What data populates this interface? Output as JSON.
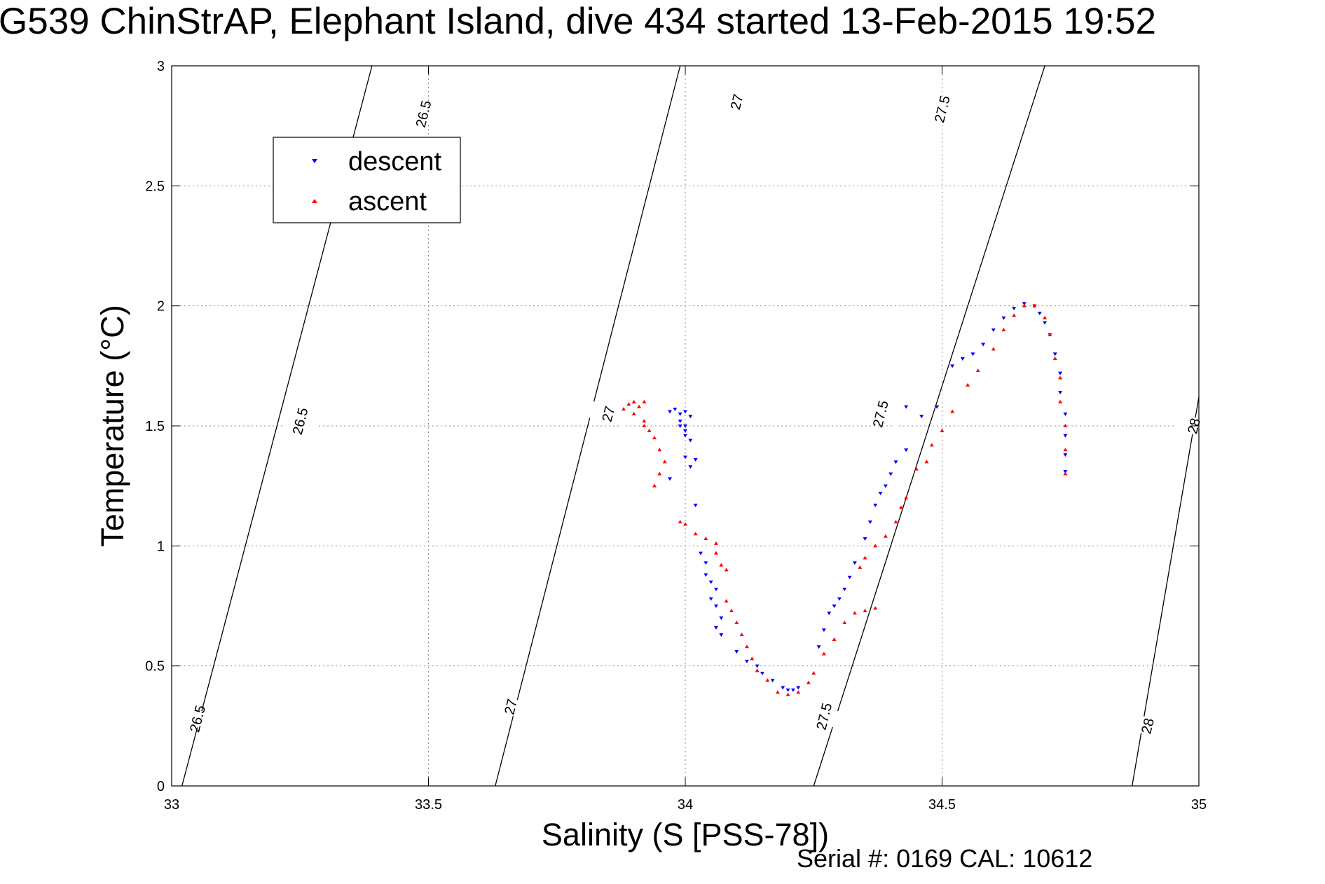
{
  "chart_data": {
    "type": "scatter",
    "title": "G539 ChinStrAP, Elephant Island, dive 434 started 13-Feb-2015 19:52",
    "xlabel": "Salinity (S [PSS-78])",
    "ylabel": "Temperature (°C)",
    "footer": "Serial #: 0169 CAL: 10612",
    "xlim": [
      33,
      35
    ],
    "ylim": [
      0,
      3
    ],
    "xticks": [
      33,
      33.5,
      34,
      34.5,
      35
    ],
    "xtick_labels": [
      "33",
      "33.5",
      "34",
      "34.5",
      "35"
    ],
    "yticks": [
      0,
      0.5,
      1,
      1.5,
      2,
      2.5,
      3
    ],
    "ytick_labels": [
      "0",
      "0.5",
      "1",
      "1.5",
      "2",
      "2.5",
      "3"
    ],
    "grid": true,
    "legend_position": "top-left",
    "colors": {
      "descent": "#0000ff",
      "ascent": "#ff0000",
      "contour": "#000000"
    },
    "density_contours": [
      {
        "label": "26.5",
        "points": [
          [
            33.02,
            0
          ],
          [
            33.39,
            3
          ]
        ]
      },
      {
        "label": "27",
        "points": [
          [
            33.63,
            0
          ],
          [
            33.99,
            3
          ]
        ]
      },
      {
        "label": "27.5",
        "points": [
          [
            34.25,
            0
          ],
          [
            34.7,
            3
          ]
        ]
      },
      {
        "label": "28",
        "points": [
          [
            34.87,
            0
          ],
          [
            35,
            1.62
          ]
        ]
      }
    ],
    "contour_labels": [
      {
        "label": "26.5",
        "x": 33.05,
        "y": 0.28
      },
      {
        "label": "26.5",
        "x": 33.25,
        "y": 1.52
      },
      {
        "label": "26.5",
        "x": 33.49,
        "y": 2.8
      },
      {
        "label": "27",
        "x": 33.66,
        "y": 0.33
      },
      {
        "label": "27",
        "x": 33.85,
        "y": 1.55
      },
      {
        "label": "27",
        "x": 34.1,
        "y": 2.85
      },
      {
        "label": "27.5",
        "x": 34.27,
        "y": 0.29
      },
      {
        "label": "27.5",
        "x": 34.38,
        "y": 1.55
      },
      {
        "label": "27.5",
        "x": 34.5,
        "y": 2.82
      },
      {
        "label": "28",
        "x": 34.9,
        "y": 0.25
      },
      {
        "label": "28",
        "x": 34.99,
        "y": 1.5
      }
    ],
    "series": [
      {
        "name": "descent",
        "marker": "triangle-down",
        "points": [
          [
            33.97,
            1.56
          ],
          [
            33.98,
            1.57
          ],
          [
            33.99,
            1.55
          ],
          [
            34.0,
            1.56
          ],
          [
            34.01,
            1.54
          ],
          [
            33.99,
            1.52
          ],
          [
            34.0,
            1.5
          ],
          [
            34.0,
            1.48
          ],
          [
            33.99,
            1.5
          ],
          [
            34.0,
            1.46
          ],
          [
            34.01,
            1.44
          ],
          [
            34.0,
            1.37
          ],
          [
            34.02,
            1.36
          ],
          [
            34.01,
            1.33
          ],
          [
            33.97,
            1.28
          ],
          [
            34.02,
            1.17
          ],
          [
            34.03,
            0.97
          ],
          [
            34.04,
            0.93
          ],
          [
            34.04,
            0.88
          ],
          [
            34.05,
            0.85
          ],
          [
            34.06,
            0.82
          ],
          [
            34.05,
            0.78
          ],
          [
            34.06,
            0.75
          ],
          [
            34.07,
            0.7
          ],
          [
            34.06,
            0.66
          ],
          [
            34.07,
            0.63
          ],
          [
            34.1,
            0.56
          ],
          [
            34.12,
            0.52
          ],
          [
            34.14,
            0.5
          ],
          [
            34.15,
            0.47
          ],
          [
            34.17,
            0.44
          ],
          [
            34.19,
            0.41
          ],
          [
            34.2,
            0.4
          ],
          [
            34.21,
            0.4
          ],
          [
            34.22,
            0.41
          ],
          [
            34.26,
            0.58
          ],
          [
            34.27,
            0.65
          ],
          [
            34.28,
            0.72
          ],
          [
            34.29,
            0.75
          ],
          [
            34.3,
            0.78
          ],
          [
            34.31,
            0.82
          ],
          [
            34.32,
            0.87
          ],
          [
            34.33,
            0.93
          ],
          [
            34.35,
            1.03
          ],
          [
            34.36,
            1.1
          ],
          [
            34.37,
            1.17
          ],
          [
            34.38,
            1.22
          ],
          [
            34.39,
            1.25
          ],
          [
            34.4,
            1.3
          ],
          [
            34.41,
            1.35
          ],
          [
            34.43,
            1.4
          ],
          [
            34.46,
            1.54
          ],
          [
            34.49,
            1.58
          ],
          [
            34.43,
            1.58
          ],
          [
            34.52,
            1.75
          ],
          [
            34.54,
            1.78
          ],
          [
            34.56,
            1.8
          ],
          [
            34.58,
            1.84
          ],
          [
            34.6,
            1.9
          ],
          [
            34.62,
            1.95
          ],
          [
            34.64,
            1.99
          ],
          [
            34.66,
            2.01
          ],
          [
            34.68,
            2.0
          ],
          [
            34.69,
            1.97
          ],
          [
            34.7,
            1.93
          ],
          [
            34.71,
            1.88
          ],
          [
            34.72,
            1.8
          ],
          [
            34.73,
            1.72
          ],
          [
            34.73,
            1.64
          ],
          [
            34.74,
            1.55
          ],
          [
            34.74,
            1.46
          ],
          [
            34.74,
            1.38
          ],
          [
            34.74,
            1.31
          ]
        ]
      },
      {
        "name": "ascent",
        "marker": "triangle-up",
        "points": [
          [
            33.89,
            1.59
          ],
          [
            33.9,
            1.6
          ],
          [
            33.91,
            1.58
          ],
          [
            33.92,
            1.6
          ],
          [
            33.88,
            1.57
          ],
          [
            33.9,
            1.55
          ],
          [
            33.92,
            1.52
          ],
          [
            33.94,
            1.45
          ],
          [
            33.95,
            1.4
          ],
          [
            33.96,
            1.35
          ],
          [
            33.95,
            1.3
          ],
          [
            33.94,
            1.25
          ],
          [
            33.92,
            1.5
          ],
          [
            33.93,
            1.48
          ],
          [
            33.99,
            1.1
          ],
          [
            34.0,
            1.09
          ],
          [
            34.02,
            1.05
          ],
          [
            34.04,
            1.03
          ],
          [
            34.06,
            1.01
          ],
          [
            34.06,
            0.97
          ],
          [
            34.07,
            0.92
          ],
          [
            34.08,
            0.9
          ],
          [
            34.08,
            0.77
          ],
          [
            34.09,
            0.73
          ],
          [
            34.1,
            0.68
          ],
          [
            34.11,
            0.63
          ],
          [
            34.12,
            0.58
          ],
          [
            34.13,
            0.53
          ],
          [
            34.14,
            0.48
          ],
          [
            34.16,
            0.44
          ],
          [
            34.18,
            0.39
          ],
          [
            34.2,
            0.38
          ],
          [
            34.22,
            0.39
          ],
          [
            34.24,
            0.43
          ],
          [
            34.25,
            0.47
          ],
          [
            34.27,
            0.55
          ],
          [
            34.29,
            0.61
          ],
          [
            34.31,
            0.68
          ],
          [
            34.33,
            0.72
          ],
          [
            34.35,
            0.73
          ],
          [
            34.37,
            0.74
          ],
          [
            34.34,
            0.91
          ],
          [
            34.35,
            0.95
          ],
          [
            34.37,
            1.0
          ],
          [
            34.39,
            1.04
          ],
          [
            34.41,
            1.1
          ],
          [
            34.42,
            1.16
          ],
          [
            34.43,
            1.2
          ],
          [
            34.45,
            1.32
          ],
          [
            34.47,
            1.35
          ],
          [
            34.48,
            1.42
          ],
          [
            34.5,
            1.48
          ],
          [
            34.52,
            1.56
          ],
          [
            34.55,
            1.67
          ],
          [
            34.57,
            1.73
          ],
          [
            34.6,
            1.82
          ],
          [
            34.62,
            1.9
          ],
          [
            34.64,
            1.96
          ],
          [
            34.66,
            2.0
          ],
          [
            34.68,
            2.0
          ],
          [
            34.7,
            1.95
          ],
          [
            34.71,
            1.88
          ],
          [
            34.72,
            1.78
          ],
          [
            34.73,
            1.7
          ],
          [
            34.73,
            1.6
          ],
          [
            34.74,
            1.5
          ],
          [
            34.74,
            1.4
          ],
          [
            34.74,
            1.3
          ]
        ]
      }
    ]
  }
}
